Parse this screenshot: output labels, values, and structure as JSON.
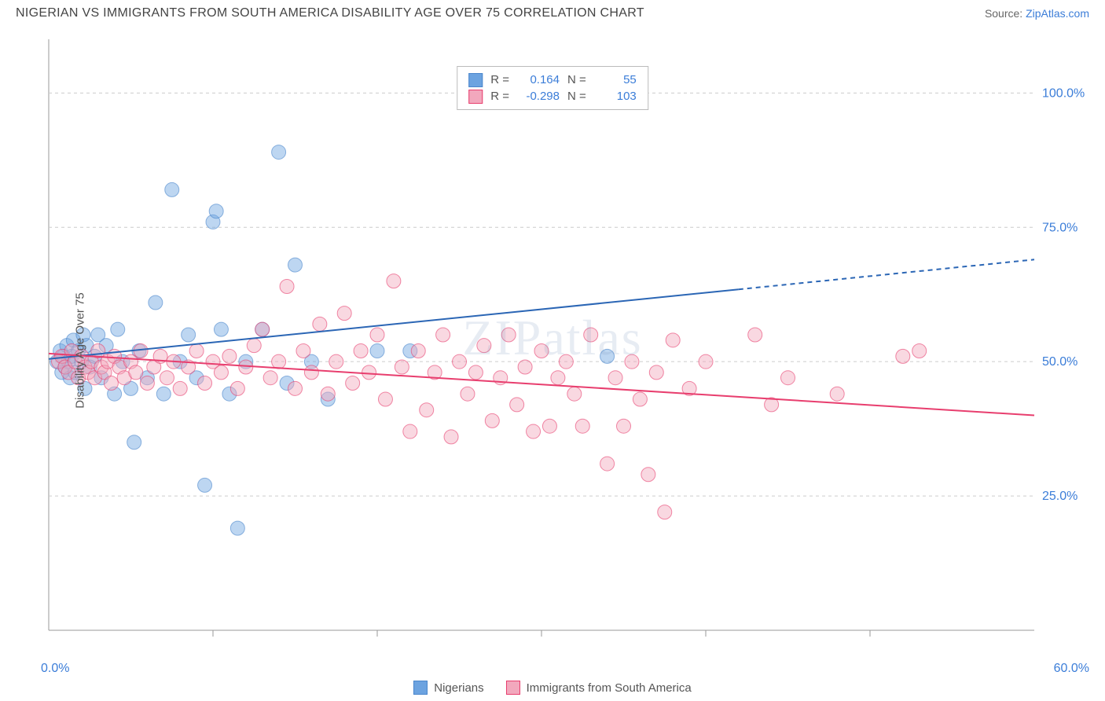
{
  "title": "NIGERIAN VS IMMIGRANTS FROM SOUTH AMERICA DISABILITY AGE OVER 75 CORRELATION CHART",
  "source_label": "Source:",
  "source_link": "ZipAtlas.com",
  "watermark": "ZIPatlas",
  "chart": {
    "type": "scatter",
    "ylabel": "Disability Age Over 75",
    "xlim": [
      0,
      60
    ],
    "ylim": [
      0,
      110
    ],
    "xtick_labels": [
      "0.0%",
      "60.0%"
    ],
    "yticks": [
      25,
      50,
      75,
      100
    ],
    "ytick_labels": [
      "25.0%",
      "50.0%",
      "75.0%",
      "100.0%"
    ],
    "xminor_ticks": [
      10,
      20,
      30,
      40,
      50
    ],
    "grid_color": "#cccccc",
    "axis_color": "#999999",
    "background_color": "#ffffff",
    "marker_radius": 9,
    "marker_opacity": 0.45,
    "line_width": 2,
    "series": [
      {
        "name": "Nigerians",
        "color": "#6ca3e0",
        "stroke": "#4a86cc",
        "line_color": "#2b66b5",
        "R": "0.164",
        "N": "55",
        "trend": {
          "x1": 0,
          "y1": 50.5,
          "x2": 60,
          "y2": 69,
          "solid_until_x": 42
        },
        "points": [
          [
            0.5,
            50
          ],
          [
            0.7,
            52
          ],
          [
            0.8,
            48
          ],
          [
            0.9,
            51
          ],
          [
            1.0,
            49
          ],
          [
            1.1,
            53
          ],
          [
            1.2,
            50
          ],
          [
            1.3,
            47
          ],
          [
            1.4,
            51
          ],
          [
            1.5,
            54
          ],
          [
            1.6,
            48
          ],
          [
            1.8,
            52
          ],
          [
            2.0,
            50
          ],
          [
            2.1,
            55
          ],
          [
            2.2,
            45
          ],
          [
            2.3,
            53
          ],
          [
            2.5,
            49
          ],
          [
            2.8,
            51
          ],
          [
            3.0,
            55
          ],
          [
            3.2,
            47
          ],
          [
            3.5,
            53
          ],
          [
            4.0,
            44
          ],
          [
            4.2,
            56
          ],
          [
            4.5,
            50
          ],
          [
            5.0,
            45
          ],
          [
            5.2,
            35
          ],
          [
            5.5,
            52
          ],
          [
            6.0,
            47
          ],
          [
            6.5,
            61
          ],
          [
            7.0,
            44
          ],
          [
            7.5,
            82
          ],
          [
            8.0,
            50
          ],
          [
            8.5,
            55
          ],
          [
            9.0,
            47
          ],
          [
            9.5,
            27
          ],
          [
            10.0,
            76
          ],
          [
            10.2,
            78
          ],
          [
            10.5,
            56
          ],
          [
            11.0,
            44
          ],
          [
            11.5,
            19
          ],
          [
            12.0,
            50
          ],
          [
            13.0,
            56
          ],
          [
            14.0,
            89
          ],
          [
            14.5,
            46
          ],
          [
            15.0,
            68
          ],
          [
            16.0,
            50
          ],
          [
            17.0,
            43
          ],
          [
            20.0,
            52
          ],
          [
            22.0,
            52
          ],
          [
            34.0,
            51
          ]
        ]
      },
      {
        "name": "Immigrants from South America",
        "color": "#f2a8bd",
        "stroke": "#e83e6e",
        "line_color": "#e83e6e",
        "R": "-0.298",
        "N": "103",
        "trend": {
          "x1": 0,
          "y1": 51.5,
          "x2": 60,
          "y2": 40,
          "solid_until_x": 60
        },
        "points": [
          [
            0.6,
            50
          ],
          [
            0.8,
            51
          ],
          [
            1.0,
            49
          ],
          [
            1.2,
            48
          ],
          [
            1.4,
            52
          ],
          [
            1.6,
            50
          ],
          [
            1.8,
            47
          ],
          [
            2.0,
            51
          ],
          [
            2.2,
            49
          ],
          [
            2.4,
            48
          ],
          [
            2.6,
            50
          ],
          [
            2.8,
            47
          ],
          [
            3.0,
            52
          ],
          [
            3.2,
            49
          ],
          [
            3.4,
            48
          ],
          [
            3.6,
            50
          ],
          [
            3.8,
            46
          ],
          [
            4.0,
            51
          ],
          [
            4.3,
            49
          ],
          [
            4.6,
            47
          ],
          [
            5.0,
            50
          ],
          [
            5.3,
            48
          ],
          [
            5.6,
            52
          ],
          [
            6.0,
            46
          ],
          [
            6.4,
            49
          ],
          [
            6.8,
            51
          ],
          [
            7.2,
            47
          ],
          [
            7.6,
            50
          ],
          [
            8.0,
            45
          ],
          [
            8.5,
            49
          ],
          [
            9.0,
            52
          ],
          [
            9.5,
            46
          ],
          [
            10.0,
            50
          ],
          [
            10.5,
            48
          ],
          [
            11.0,
            51
          ],
          [
            11.5,
            45
          ],
          [
            12.0,
            49
          ],
          [
            12.5,
            53
          ],
          [
            13.0,
            56
          ],
          [
            13.5,
            47
          ],
          [
            14.0,
            50
          ],
          [
            14.5,
            64
          ],
          [
            15.0,
            45
          ],
          [
            15.5,
            52
          ],
          [
            16.0,
            48
          ],
          [
            16.5,
            57
          ],
          [
            17.0,
            44
          ],
          [
            17.5,
            50
          ],
          [
            18.0,
            59
          ],
          [
            18.5,
            46
          ],
          [
            19.0,
            52
          ],
          [
            19.5,
            48
          ],
          [
            20.0,
            55
          ],
          [
            20.5,
            43
          ],
          [
            21.0,
            65
          ],
          [
            21.5,
            49
          ],
          [
            22.0,
            37
          ],
          [
            22.5,
            52
          ],
          [
            23.0,
            41
          ],
          [
            23.5,
            48
          ],
          [
            24.0,
            55
          ],
          [
            24.5,
            36
          ],
          [
            25.0,
            50
          ],
          [
            25.5,
            44
          ],
          [
            26.0,
            48
          ],
          [
            26.5,
            53
          ],
          [
            27.0,
            39
          ],
          [
            27.5,
            47
          ],
          [
            28.0,
            55
          ],
          [
            28.5,
            42
          ],
          [
            29.0,
            49
          ],
          [
            29.5,
            37
          ],
          [
            30.0,
            52
          ],
          [
            30.5,
            38
          ],
          [
            31.0,
            47
          ],
          [
            31.5,
            50
          ],
          [
            32.0,
            44
          ],
          [
            32.5,
            38
          ],
          [
            33.0,
            55
          ],
          [
            34.0,
            31
          ],
          [
            34.5,
            47
          ],
          [
            35.0,
            38
          ],
          [
            35.5,
            50
          ],
          [
            36.0,
            43
          ],
          [
            36.5,
            29
          ],
          [
            37.0,
            48
          ],
          [
            37.5,
            22
          ],
          [
            38.0,
            54
          ],
          [
            39.0,
            45
          ],
          [
            40.0,
            50
          ],
          [
            43.0,
            55
          ],
          [
            44.0,
            42
          ],
          [
            45.0,
            47
          ],
          [
            52.0,
            51
          ],
          [
            53.0,
            52
          ],
          [
            48.0,
            44
          ]
        ]
      }
    ],
    "legend": {
      "series1_label": "Nigerians",
      "series2_label": "Immigrants from South America"
    }
  }
}
